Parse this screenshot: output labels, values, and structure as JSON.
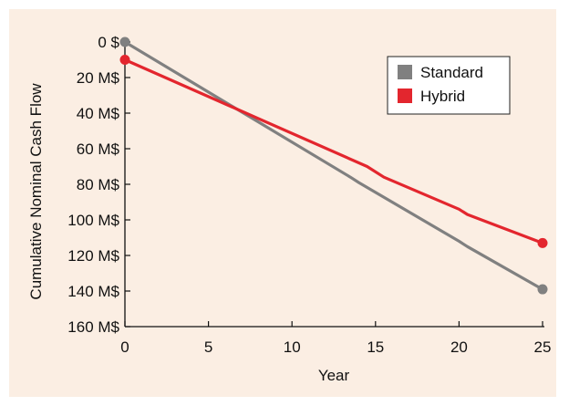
{
  "chart_data": {
    "type": "line",
    "title": "",
    "xlabel": "Year",
    "ylabel": "Cumulative Nominal Cash Flow",
    "xlim": [
      0,
      25
    ],
    "ylim": [
      0,
      160
    ],
    "y_inverted": true,
    "x_ticks": [
      {
        "value": 0,
        "label": "0"
      },
      {
        "value": 5,
        "label": "5"
      },
      {
        "value": 10,
        "label": "10"
      },
      {
        "value": 15,
        "label": "15"
      },
      {
        "value": 20,
        "label": "20"
      },
      {
        "value": 25,
        "label": "25"
      }
    ],
    "y_ticks": [
      {
        "value": 0,
        "label": "0 $"
      },
      {
        "value": 20,
        "label": "20 M$"
      },
      {
        "value": 40,
        "label": "40 M$"
      },
      {
        "value": 60,
        "label": "60 M$"
      },
      {
        "value": 80,
        "label": "80 M$"
      },
      {
        "value": 100,
        "label": "100 M$"
      },
      {
        "value": 120,
        "label": "120 M$"
      },
      {
        "value": 140,
        "label": "140 M$"
      },
      {
        "value": 160,
        "label": "160 M$"
      }
    ],
    "grid": false,
    "legend_position": "top-right",
    "background_color": "#fbeee3",
    "series": [
      {
        "name": "Standard",
        "color": "#808080",
        "points": [
          {
            "x": 0,
            "y": 0
          },
          {
            "x": 13.5,
            "y": 76
          },
          {
            "x": 14,
            "y": 79
          },
          {
            "x": 20,
            "y": 112
          },
          {
            "x": 20.5,
            "y": 115
          },
          {
            "x": 25,
            "y": 139
          }
        ]
      },
      {
        "name": "Hybrid",
        "color": "#e3262e",
        "points": [
          {
            "x": 0,
            "y": 10
          },
          {
            "x": 14.5,
            "y": 70
          },
          {
            "x": 15.5,
            "y": 76
          },
          {
            "x": 20,
            "y": 94
          },
          {
            "x": 20.5,
            "y": 97
          },
          {
            "x": 25,
            "y": 113
          }
        ]
      }
    ]
  }
}
